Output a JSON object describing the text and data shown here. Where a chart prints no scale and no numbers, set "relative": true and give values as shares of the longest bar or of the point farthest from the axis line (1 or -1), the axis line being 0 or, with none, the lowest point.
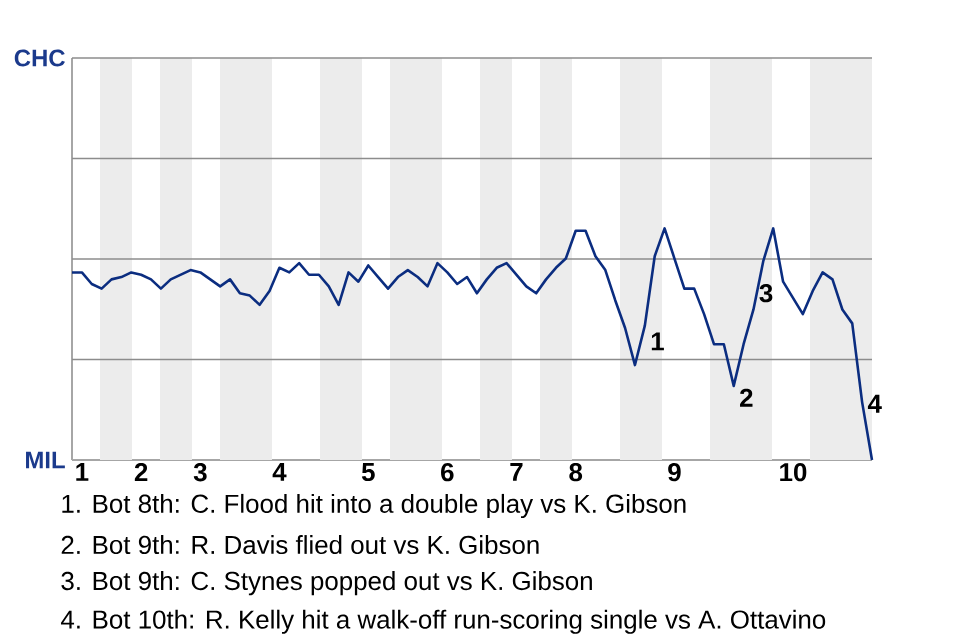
{
  "chart_data": {
    "type": "line",
    "relative": true,
    "categories": [
      null,
      "1",
      null,
      null,
      null,
      null,
      null,
      "2",
      null,
      null,
      null,
      null,
      null,
      "3",
      null,
      null,
      null,
      null,
      null,
      null,
      null,
      "4",
      null,
      null,
      null,
      null,
      null,
      null,
      null,
      null,
      "5",
      null,
      null,
      null,
      null,
      null,
      null,
      null,
      "6",
      null,
      null,
      null,
      null,
      null,
      null,
      "7",
      null,
      null,
      null,
      null,
      null,
      "8",
      null,
      null,
      null,
      null,
      null,
      null,
      null,
      null,
      null,
      "9",
      null,
      null,
      null,
      null,
      null,
      null,
      null,
      null,
      null,
      null,
      null,
      "10",
      null,
      null,
      null,
      null,
      null,
      null,
      null,
      null
    ],
    "series": [
      {
        "color": "#0b2d80",
        "values": [
          0.81,
          0.81,
          0.76,
          0.74,
          0.78,
          0.79,
          0.81,
          0.8,
          0.78,
          0.74,
          0.78,
          0.8,
          0.82,
          0.81,
          0.78,
          0.75,
          0.78,
          0.72,
          0.71,
          0.67,
          0.73,
          0.83,
          0.81,
          0.85,
          0.8,
          0.8,
          0.75,
          0.67,
          0.81,
          0.77,
          0.84,
          0.79,
          0.74,
          0.79,
          0.82,
          0.79,
          0.75,
          0.85,
          0.81,
          0.76,
          0.79,
          0.72,
          0.78,
          0.83,
          0.85,
          0.8,
          0.75,
          0.72,
          0.78,
          0.83,
          0.87,
          0.99,
          0.99,
          0.88,
          0.82,
          0.69,
          0.57,
          0.41,
          0.58,
          0.88,
          1,
          0.87,
          0.74,
          0.74,
          0.63,
          0.5,
          0.5,
          0.32,
          0.5,
          0.65,
          0.86,
          1,
          0.77,
          0.7,
          0.63,
          0.73,
          0.81,
          0.78,
          0.65,
          0.59,
          0.25,
          0
        ]
      }
    ],
    "marker": "none",
    "line_style": "solid",
    "ref_lines": [
      {
        "axis": "y",
        "value": 0.434,
        "color": "#8c8c8c"
      },
      {
        "axis": "y",
        "value": 0.868,
        "color": "#8c8c8c"
      },
      {
        "axis": "y",
        "value": 1.302,
        "color": "#8c8c8c"
      }
    ],
    "annotations": [
      "CHC",
      "MIL",
      "1",
      "2",
      "3",
      "4",
      "1. Bot 8th: C. Flood hit into a double play vs K. Gibson",
      "2. Bot 9th: R. Davis flied out vs K. Gibson",
      "3. Bot 9th: C. Stynes popped out vs K. Gibson",
      "4. Bot 10th: R. Kelly hit a walk-off run-scoring single vs A. Ottavino"
    ]
  }
}
